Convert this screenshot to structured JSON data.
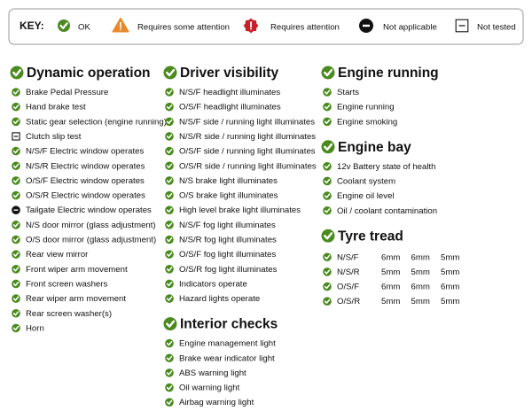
{
  "key": {
    "title": "KEY:",
    "items": [
      {
        "label": "OK"
      },
      {
        "label": "Requires some attention"
      },
      {
        "label": "Requires attention"
      },
      {
        "label": "Not applicable"
      },
      {
        "label": "Not tested"
      }
    ]
  },
  "columns": [
    {
      "sections": [
        {
          "title": "Dynamic operation",
          "status": "OK",
          "items": [
            {
              "label": "Brake Pedal Pressure",
              "status": "OK"
            },
            {
              "label": "Hand brake test",
              "status": "OK"
            },
            {
              "label": "Static gear selection (engine running)",
              "status": "OK"
            },
            {
              "label": "Clutch slip test",
              "status": "Not tested"
            },
            {
              "label": "N/S/F Electric window operates",
              "status": "OK"
            },
            {
              "label": "N/S/R Electric window operates",
              "status": "OK"
            },
            {
              "label": "O/S/F Electric window operates",
              "status": "OK"
            },
            {
              "label": "O/S/R Electric window operates",
              "status": "OK"
            },
            {
              "label": "Tailgate Electric window operates",
              "status": "Not applicable"
            },
            {
              "label": "N/S door mirror (glass adjustment)",
              "status": "OK"
            },
            {
              "label": "O/S door mirror (glass adjustment)",
              "status": "OK"
            },
            {
              "label": "Rear view mirror",
              "status": "OK"
            },
            {
              "label": "Front wiper arm movement",
              "status": "OK"
            },
            {
              "label": "Front screen washers",
              "status": "OK"
            },
            {
              "label": "Rear wiper arm movement",
              "status": "OK"
            },
            {
              "label": "Rear screen washer(s)",
              "status": "OK"
            },
            {
              "label": "Horn",
              "status": "OK"
            }
          ]
        }
      ]
    },
    {
      "sections": [
        {
          "title": "Driver visibility",
          "status": "OK",
          "items": [
            {
              "label": "N/S/F headlight illuminates",
              "status": "OK"
            },
            {
              "label": "O/S/F headlight illuminates",
              "status": "OK"
            },
            {
              "label": "N/S/F side / running light illuminates",
              "status": "OK"
            },
            {
              "label": "N/S/R side / running light illuminates",
              "status": "OK"
            },
            {
              "label": "O/S/F side / running light illuminates",
              "status": "OK"
            },
            {
              "label": "O/S/R side / running light illuminates",
              "status": "OK"
            },
            {
              "label": "N/S brake light illuminates",
              "status": "OK"
            },
            {
              "label": "O/S brake light illuminates",
              "status": "OK"
            },
            {
              "label": "High level brake light illuminates",
              "status": "OK"
            },
            {
              "label": "N/S/F fog light illuminates",
              "status": "OK"
            },
            {
              "label": "N/S/R fog light illuminates",
              "status": "OK"
            },
            {
              "label": "O/S/F fog light illuminates",
              "status": "OK"
            },
            {
              "label": "O/S/R fog light illuminates",
              "status": "OK"
            },
            {
              "label": "Indicators operate",
              "status": "OK"
            },
            {
              "label": "Hazard lights operate",
              "status": "OK"
            }
          ]
        },
        {
          "title": "Interior checks",
          "status": "OK",
          "items": [
            {
              "label": "Engine management light",
              "status": "OK"
            },
            {
              "label": "Brake wear indicator light",
              "status": "OK"
            },
            {
              "label": "ABS warning light",
              "status": "OK"
            },
            {
              "label": "Oil warning light",
              "status": "OK"
            },
            {
              "label": "Airbag warning light",
              "status": "OK"
            }
          ]
        }
      ]
    },
    {
      "sections": [
        {
          "title": "Engine running",
          "status": "OK",
          "items": [
            {
              "label": "Starts",
              "status": "OK"
            },
            {
              "label": "Engine running",
              "status": "OK"
            },
            {
              "label": "Engine smoking",
              "status": "OK"
            }
          ]
        },
        {
          "title": "Engine bay",
          "status": "OK",
          "items": [
            {
              "label": "12v Battery state of health",
              "status": "OK"
            },
            {
              "label": "Coolant system",
              "status": "OK"
            },
            {
              "label": "Engine oil level",
              "status": "OK"
            },
            {
              "label": "Oil / coolant contamination",
              "status": "OK"
            }
          ]
        },
        {
          "title": "Tyre tread",
          "status": "OK",
          "items": [
            {
              "label": "N/S/F",
              "status": "OK",
              "values": [
                "6mm",
                "6mm",
                "5mm"
              ]
            },
            {
              "label": "N/S/R",
              "status": "OK",
              "values": [
                "5mm",
                "5mm",
                "5mm"
              ]
            },
            {
              "label": "O/S/F",
              "status": "OK",
              "values": [
                "6mm",
                "6mm",
                "6mm"
              ]
            },
            {
              "label": "O/S/R",
              "status": "OK",
              "values": [
                "5mm",
                "5mm",
                "5mm"
              ]
            }
          ]
        }
      ]
    }
  ]
}
